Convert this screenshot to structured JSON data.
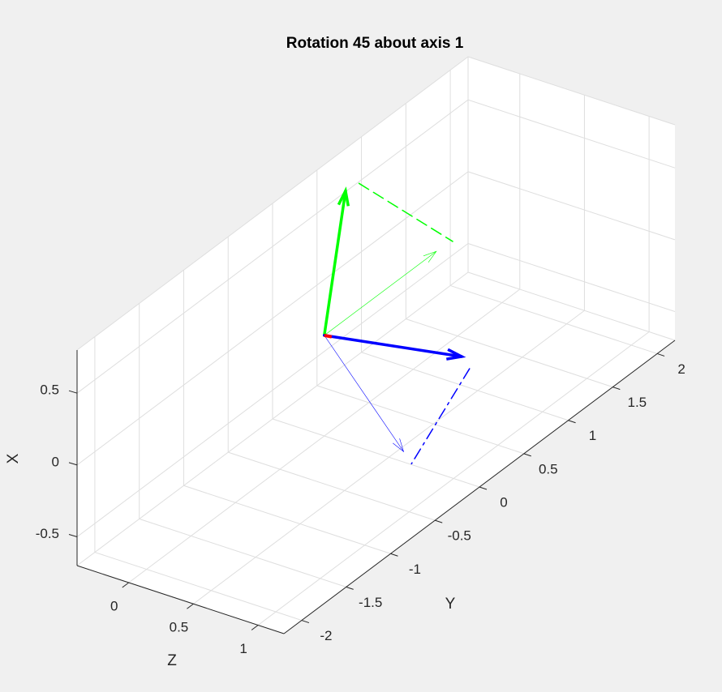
{
  "chart_data": {
    "type": "vector3d",
    "title": "Rotation 45 about axis 1",
    "xlabel": "X",
    "ylabel": "Y",
    "zlabel": "Z",
    "xlim": [
      -0.7,
      0.8
    ],
    "ylim": [
      -2.2,
      2.2
    ],
    "zlim": [
      -0.4,
      1.2
    ],
    "xticks": [
      -0.5,
      0,
      0.5
    ],
    "yticks": [
      -2,
      -1.5,
      -1,
      -0.5,
      0,
      0.5,
      1,
      1.5,
      2
    ],
    "zticks": [
      0,
      0.5,
      1
    ],
    "grid": true,
    "series": [
      {
        "color": "#00ff00",
        "linewidth": 0.6,
        "style": "arrow",
        "start": [
          0,
          0,
          0
        ],
        "end": [
          0,
          1.26,
          0
        ]
      },
      {
        "color": "#00ff00",
        "linewidth": 3.5,
        "style": "arrow",
        "start": [
          0,
          0,
          0
        ],
        "end": [
          0.7,
          0.53,
          -0.2
        ]
      },
      {
        "color": "#00ff00",
        "linewidth": 1.5,
        "style": "dashed",
        "start": [
          0.75,
          0.58,
          -0.13
        ],
        "end": [
          0.1,
          1.27,
          0.12
        ]
      },
      {
        "color": "#0000ff",
        "linewidth": 0.6,
        "style": "arrow",
        "start": [
          0,
          0,
          0
        ],
        "end": [
          -0.3,
          -0.49,
          0.95
        ]
      },
      {
        "color": "#0000ff",
        "linewidth": 3.5,
        "style": "arrow",
        "start": [
          0,
          0,
          0
        ],
        "end": [
          0,
          0.25,
          0.89
        ]
      },
      {
        "color": "#0000ff",
        "linewidth": 1.5,
        "style": "dashdot",
        "start": [
          0,
          0.15,
          1.02
        ],
        "end": [
          -0.3,
          -0.59,
          1.08
        ]
      },
      {
        "color": "#ff0000",
        "linewidth": 4,
        "style": "line",
        "start": [
          0,
          0,
          0
        ],
        "end": [
          0,
          0.01,
          0.05
        ]
      }
    ]
  }
}
